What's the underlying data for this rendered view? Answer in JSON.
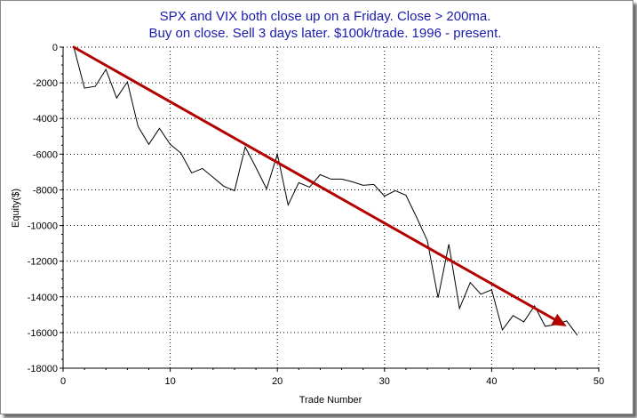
{
  "chart_data": {
    "type": "line",
    "title": [
      "SPX and VIX both close up on a Friday. Close > 200ma.",
      "Buy on close. Sell 3 days later. $100k/trade. 1996 - present."
    ],
    "xlabel": "Trade Number",
    "ylabel": "Equity($)",
    "xlim": [
      0,
      50
    ],
    "ylim": [
      -18000,
      0
    ],
    "x_ticks": [
      0,
      10,
      20,
      30,
      40,
      50
    ],
    "y_ticks": [
      0,
      -2000,
      -4000,
      -6000,
      -8000,
      -10000,
      -12000,
      -14000,
      -16000,
      -18000
    ],
    "x_tick_labels": [
      "0",
      "10",
      "20",
      "30",
      "40",
      "50"
    ],
    "y_tick_labels": [
      "0",
      "-2000",
      "-4000",
      "-6000",
      "-8000",
      "-10000",
      "-12000",
      "-14000",
      "-16000",
      "-18000"
    ],
    "grid": true,
    "line_color": "#000000",
    "series": [
      {
        "x": [
          1,
          2,
          3,
          4,
          5,
          6,
          7,
          8,
          9,
          10,
          11,
          12,
          13,
          14,
          15,
          16,
          17,
          18,
          19,
          20,
          21,
          22,
          23,
          24,
          25,
          26,
          27,
          28,
          29,
          30,
          31,
          32,
          33,
          34,
          35,
          36,
          37,
          38,
          39,
          40,
          41,
          42,
          43,
          44,
          45,
          46,
          47,
          48
        ],
        "values": [
          0,
          -2300,
          -2200,
          -1250,
          -2850,
          -1950,
          -4450,
          -5450,
          -4550,
          -5450,
          -5950,
          -7050,
          -6800,
          -7300,
          -7800,
          -8050,
          -5600,
          -6750,
          -7950,
          -6000,
          -8850,
          -7600,
          -7850,
          -7150,
          -7400,
          -7400,
          -7550,
          -7750,
          -7700,
          -8350,
          -8050,
          -8300,
          -9550,
          -10850,
          -14050,
          -11050,
          -14650,
          -13200,
          -13850,
          -13600,
          -15850,
          -15050,
          -15400,
          -14500,
          -15650,
          -15550,
          -15350,
          -16150
        ]
      }
    ],
    "trend_arrow": {
      "from": [
        1,
        0
      ],
      "to": [
        47,
        -15650
      ],
      "color": "#b30000"
    }
  }
}
